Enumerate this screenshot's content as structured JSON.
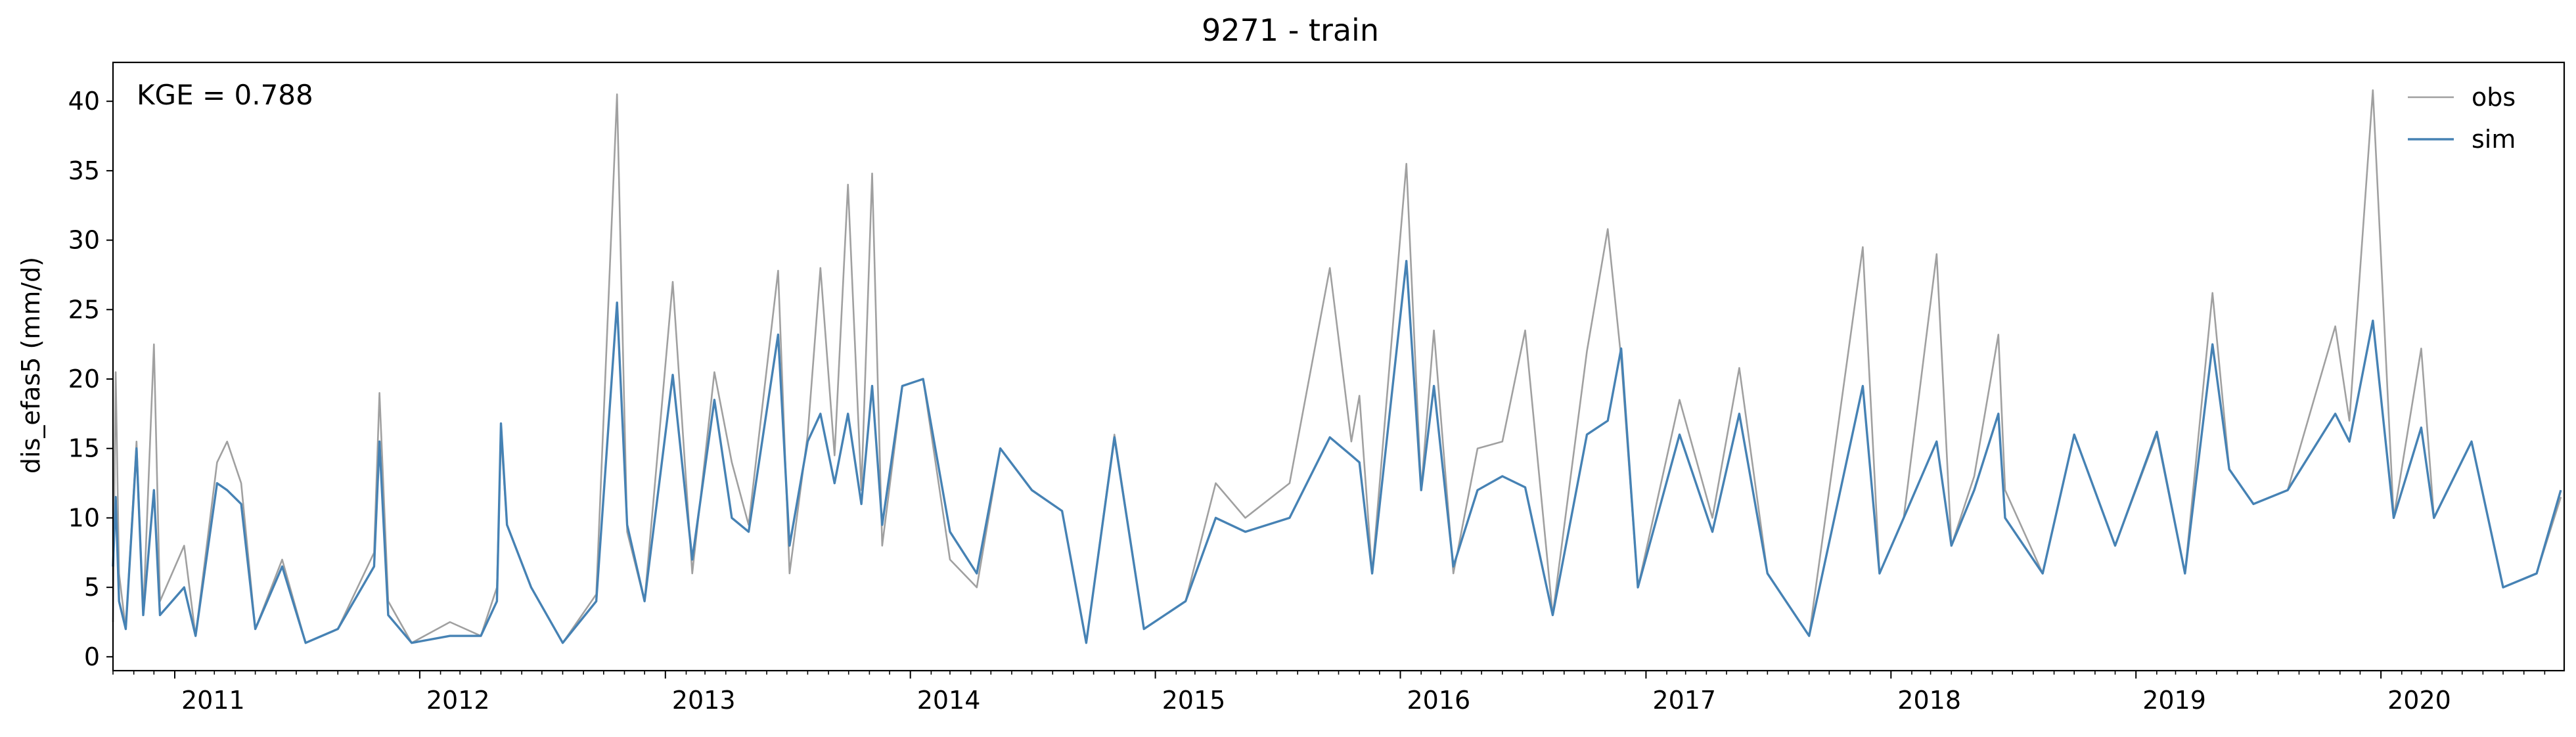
{
  "chart_data": {
    "type": "line",
    "title": "9271 - train",
    "ylabel": "dis_efas5 (mm/d)",
    "xlabel": "",
    "annotation": "KGE = 0.788",
    "ylim": [
      -1.0,
      42.8
    ],
    "yticks": [
      0,
      5,
      10,
      15,
      20,
      25,
      30,
      35,
      40
    ],
    "xlim": [
      "2010-10-01",
      "2020-09-30"
    ],
    "xticks": [
      {
        "date": "2011-01-01",
        "label": "2011"
      },
      {
        "date": "2012-01-01",
        "label": "2012"
      },
      {
        "date": "2013-01-01",
        "label": "2013"
      },
      {
        "date": "2014-01-01",
        "label": "2014"
      },
      {
        "date": "2015-01-01",
        "label": "2015"
      },
      {
        "date": "2016-01-01",
        "label": "2016"
      },
      {
        "date": "2017-01-01",
        "label": "2017"
      },
      {
        "date": "2018-01-01",
        "label": "2018"
      },
      {
        "date": "2019-01-01",
        "label": "2019"
      },
      {
        "date": "2020-01-01",
        "label": "2020"
      }
    ],
    "grid": false,
    "legend_position": "top-right",
    "series": [
      {
        "name": "obs",
        "color": "#a0a0a0",
        "points": [
          [
            "2010-10-01",
            2.5
          ],
          [
            "2010-10-05",
            20.5
          ],
          [
            "2010-10-10",
            6.0
          ],
          [
            "2010-10-20",
            2.0
          ],
          [
            "2010-11-05",
            15.5
          ],
          [
            "2010-11-15",
            3.0
          ],
          [
            "2010-12-01",
            22.5
          ],
          [
            "2010-12-10",
            4.0
          ],
          [
            "2011-01-15",
            8.0
          ],
          [
            "2011-02-01",
            1.5
          ],
          [
            "2011-03-05",
            14.0
          ],
          [
            "2011-03-20",
            15.5
          ],
          [
            "2011-04-10",
            12.5
          ],
          [
            "2011-05-01",
            2.0
          ],
          [
            "2011-06-10",
            7.0
          ],
          [
            "2011-07-15",
            1.0
          ],
          [
            "2011-09-01",
            2.0
          ],
          [
            "2011-10-25",
            7.5
          ],
          [
            "2011-11-02",
            19.0
          ],
          [
            "2011-11-15",
            4.0
          ],
          [
            "2011-12-20",
            1.0
          ],
          [
            "2012-02-15",
            2.5
          ],
          [
            "2012-04-01",
            1.5
          ],
          [
            "2012-04-25",
            5.0
          ],
          [
            "2012-05-01",
            16.0
          ],
          [
            "2012-05-10",
            9.5
          ],
          [
            "2012-06-15",
            5.0
          ],
          [
            "2012-08-01",
            1.0
          ],
          [
            "2012-09-20",
            4.5
          ],
          [
            "2012-10-21",
            40.5
          ],
          [
            "2012-11-05",
            9.0
          ],
          [
            "2012-12-01",
            4.0
          ],
          [
            "2013-01-12",
            27.0
          ],
          [
            "2013-02-10",
            6.0
          ],
          [
            "2013-03-15",
            20.5
          ],
          [
            "2013-04-10",
            14.0
          ],
          [
            "2013-05-05",
            9.5
          ],
          [
            "2013-06-18",
            27.8
          ],
          [
            "2013-07-05",
            6.0
          ],
          [
            "2013-08-01",
            16.0
          ],
          [
            "2013-08-20",
            28.0
          ],
          [
            "2013-09-10",
            14.5
          ],
          [
            "2013-09-30",
            34.0
          ],
          [
            "2013-10-20",
            12.0
          ],
          [
            "2013-11-05",
            34.8
          ],
          [
            "2013-11-20",
            8.0
          ],
          [
            "2013-12-20",
            19.5
          ],
          [
            "2014-01-20",
            20.0
          ],
          [
            "2014-03-01",
            7.0
          ],
          [
            "2014-04-10",
            5.0
          ],
          [
            "2014-05-15",
            15.0
          ],
          [
            "2014-07-01",
            12.0
          ],
          [
            "2014-08-15",
            10.5
          ],
          [
            "2014-09-20",
            1.0
          ],
          [
            "2014-11-01",
            16.0
          ],
          [
            "2014-12-15",
            2.0
          ],
          [
            "2015-02-15",
            4.0
          ],
          [
            "2015-04-01",
            12.5
          ],
          [
            "2015-05-15",
            10.0
          ],
          [
            "2015-07-20",
            12.5
          ],
          [
            "2015-09-18",
            28.0
          ],
          [
            "2015-10-20",
            15.5
          ],
          [
            "2015-11-01",
            18.8
          ],
          [
            "2015-11-20",
            6.0
          ],
          [
            "2016-01-10",
            35.5
          ],
          [
            "2016-02-01",
            12.0
          ],
          [
            "2016-02-20",
            23.5
          ],
          [
            "2016-03-20",
            6.0
          ],
          [
            "2016-04-25",
            15.0
          ],
          [
            "2016-06-01",
            15.5
          ],
          [
            "2016-07-05",
            23.5
          ],
          [
            "2016-08-15",
            3.0
          ],
          [
            "2016-10-05",
            22.0
          ],
          [
            "2016-11-05",
            30.8
          ],
          [
            "2016-11-25",
            21.5
          ],
          [
            "2016-12-20",
            5.0
          ],
          [
            "2017-02-20",
            18.5
          ],
          [
            "2017-04-10",
            10.0
          ],
          [
            "2017-05-20",
            20.8
          ],
          [
            "2017-07-01",
            6.0
          ],
          [
            "2017-09-01",
            1.5
          ],
          [
            "2017-11-20",
            29.5
          ],
          [
            "2017-12-15",
            6.0
          ],
          [
            "2018-01-20",
            10.0
          ],
          [
            "2018-03-10",
            29.0
          ],
          [
            "2018-04-01",
            8.0
          ],
          [
            "2018-05-05",
            13.0
          ],
          [
            "2018-06-10",
            23.2
          ],
          [
            "2018-06-20",
            12.0
          ],
          [
            "2018-08-15",
            6.0
          ],
          [
            "2018-10-01",
            16.0
          ],
          [
            "2018-12-01",
            8.0
          ],
          [
            "2019-02-01",
            16.0
          ],
          [
            "2019-03-15",
            6.0
          ],
          [
            "2019-04-25",
            26.2
          ],
          [
            "2019-05-20",
            13.5
          ],
          [
            "2019-06-25",
            11.0
          ],
          [
            "2019-08-15",
            12.0
          ],
          [
            "2019-10-25",
            23.8
          ],
          [
            "2019-11-15",
            17.0
          ],
          [
            "2019-12-20",
            40.8
          ],
          [
            "2020-01-20",
            10.0
          ],
          [
            "2020-03-01",
            22.2
          ],
          [
            "2020-03-20",
            10.0
          ],
          [
            "2020-05-15",
            15.5
          ],
          [
            "2020-07-01",
            5.0
          ],
          [
            "2020-08-20",
            6.0
          ],
          [
            "2020-09-25",
            11.5
          ]
        ]
      },
      {
        "name": "sim",
        "color": "#4682b4",
        "points": [
          [
            "2010-10-01",
            6.5
          ],
          [
            "2010-10-05",
            11.5
          ],
          [
            "2010-10-10",
            4.0
          ],
          [
            "2010-10-20",
            2.0
          ],
          [
            "2010-11-05",
            15.0
          ],
          [
            "2010-11-15",
            3.0
          ],
          [
            "2010-12-01",
            12.0
          ],
          [
            "2010-12-10",
            3.0
          ],
          [
            "2011-01-15",
            5.0
          ],
          [
            "2011-02-01",
            1.5
          ],
          [
            "2011-03-05",
            12.5
          ],
          [
            "2011-03-20",
            12.0
          ],
          [
            "2011-04-10",
            11.0
          ],
          [
            "2011-05-01",
            2.0
          ],
          [
            "2011-06-10",
            6.5
          ],
          [
            "2011-07-15",
            1.0
          ],
          [
            "2011-09-01",
            2.0
          ],
          [
            "2011-10-25",
            6.5
          ],
          [
            "2011-11-02",
            15.5
          ],
          [
            "2011-11-15",
            3.0
          ],
          [
            "2011-12-20",
            1.0
          ],
          [
            "2012-02-15",
            1.5
          ],
          [
            "2012-04-01",
            1.5
          ],
          [
            "2012-04-25",
            4.0
          ],
          [
            "2012-05-01",
            16.8
          ],
          [
            "2012-05-10",
            9.5
          ],
          [
            "2012-06-15",
            5.0
          ],
          [
            "2012-08-01",
            1.0
          ],
          [
            "2012-09-20",
            4.0
          ],
          [
            "2012-10-21",
            25.5
          ],
          [
            "2012-11-05",
            9.5
          ],
          [
            "2012-12-01",
            4.0
          ],
          [
            "2013-01-12",
            20.3
          ],
          [
            "2013-02-10",
            7.0
          ],
          [
            "2013-03-15",
            18.5
          ],
          [
            "2013-04-10",
            10.0
          ],
          [
            "2013-05-05",
            9.0
          ],
          [
            "2013-06-18",
            23.2
          ],
          [
            "2013-07-05",
            8.0
          ],
          [
            "2013-08-01",
            15.5
          ],
          [
            "2013-08-20",
            17.5
          ],
          [
            "2013-09-10",
            12.5
          ],
          [
            "2013-09-30",
            17.5
          ],
          [
            "2013-10-20",
            11.0
          ],
          [
            "2013-11-05",
            19.5
          ],
          [
            "2013-11-20",
            9.5
          ],
          [
            "2013-12-20",
            19.5
          ],
          [
            "2014-01-20",
            20.0
          ],
          [
            "2014-03-01",
            9.0
          ],
          [
            "2014-04-10",
            6.0
          ],
          [
            "2014-05-15",
            15.0
          ],
          [
            "2014-07-01",
            12.0
          ],
          [
            "2014-08-15",
            10.5
          ],
          [
            "2014-09-20",
            1.0
          ],
          [
            "2014-11-01",
            15.8
          ],
          [
            "2014-12-15",
            2.0
          ],
          [
            "2015-02-15",
            4.0
          ],
          [
            "2015-04-01",
            10.0
          ],
          [
            "2015-05-15",
            9.0
          ],
          [
            "2015-07-20",
            10.0
          ],
          [
            "2015-09-18",
            15.8
          ],
          [
            "2015-10-20",
            14.5
          ],
          [
            "2015-11-01",
            14.0
          ],
          [
            "2015-11-20",
            6.0
          ],
          [
            "2016-01-10",
            28.5
          ],
          [
            "2016-02-01",
            12.0
          ],
          [
            "2016-02-20",
            19.5
          ],
          [
            "2016-03-20",
            6.5
          ],
          [
            "2016-04-25",
            12.0
          ],
          [
            "2016-06-01",
            13.0
          ],
          [
            "2016-07-05",
            12.2
          ],
          [
            "2016-08-15",
            3.0
          ],
          [
            "2016-10-05",
            16.0
          ],
          [
            "2016-11-05",
            17.0
          ],
          [
            "2016-11-25",
            22.2
          ],
          [
            "2016-12-20",
            5.0
          ],
          [
            "2017-02-20",
            16.0
          ],
          [
            "2017-04-10",
            9.0
          ],
          [
            "2017-05-20",
            17.5
          ],
          [
            "2017-07-01",
            6.0
          ],
          [
            "2017-09-01",
            1.5
          ],
          [
            "2017-11-20",
            19.5
          ],
          [
            "2017-12-15",
            6.0
          ],
          [
            "2018-01-20",
            10.0
          ],
          [
            "2018-03-10",
            15.5
          ],
          [
            "2018-04-01",
            8.0
          ],
          [
            "2018-05-05",
            12.0
          ],
          [
            "2018-06-10",
            17.5
          ],
          [
            "2018-06-20",
            10.0
          ],
          [
            "2018-08-15",
            6.0
          ],
          [
            "2018-10-01",
            16.0
          ],
          [
            "2018-12-01",
            8.0
          ],
          [
            "2019-02-01",
            16.2
          ],
          [
            "2019-03-15",
            6.0
          ],
          [
            "2019-04-25",
            22.5
          ],
          [
            "2019-05-20",
            13.5
          ],
          [
            "2019-06-25",
            11.0
          ],
          [
            "2019-08-15",
            12.0
          ],
          [
            "2019-10-25",
            17.5
          ],
          [
            "2019-11-15",
            15.5
          ],
          [
            "2019-12-20",
            24.2
          ],
          [
            "2020-01-20",
            10.0
          ],
          [
            "2020-03-01",
            16.5
          ],
          [
            "2020-03-20",
            10.0
          ],
          [
            "2020-05-15",
            15.5
          ],
          [
            "2020-07-01",
            5.0
          ],
          [
            "2020-08-20",
            6.0
          ],
          [
            "2020-09-25",
            12.0
          ]
        ]
      }
    ]
  }
}
